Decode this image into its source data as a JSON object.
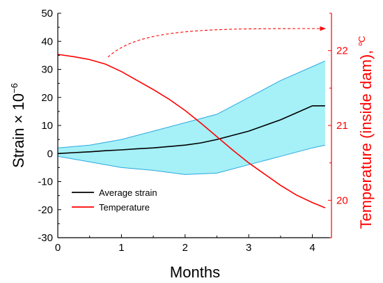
{
  "chart_data": {
    "type": "line",
    "xlabel": "Months",
    "ylabel_left": "Strain × 10",
    "ylabel_left_exponent": "−6",
    "ylabel_right": "Temperature (inside dam), ",
    "ylabel_right_unit": "ºC",
    "xlim": [
      0,
      4.3
    ],
    "ylim_left": [
      -30,
      50
    ],
    "ylim_right": [
      19.5,
      22.5
    ],
    "x_ticks": [
      "0",
      "1",
      "2",
      "3",
      "4"
    ],
    "y_left_ticks": [
      "-30",
      "-20",
      "-10",
      "0",
      "10",
      "20",
      "30",
      "40",
      "50"
    ],
    "y_right_ticks": [
      "20",
      "21",
      "22"
    ],
    "legend": {
      "position": "bottom-left",
      "items": [
        "Average strain",
        "Temperature"
      ]
    },
    "colors": {
      "strain": "#000000",
      "temperature": "#ff0000",
      "band_fill": "#a6f0f7",
      "band_edge": "#29a8e0"
    },
    "annotation": "dashed arrow indicating temperature belongs to right axis",
    "series": [
      {
        "name": "Average strain",
        "axis": "left",
        "x": [
          0,
          0.25,
          0.5,
          0.75,
          1.0,
          1.25,
          1.5,
          1.75,
          2.0,
          2.25,
          2.5,
          2.75,
          3.0,
          3.25,
          3.5,
          3.75,
          4.0,
          4.2
        ],
        "y": [
          0,
          0.3,
          0.6,
          1.0,
          1.3,
          1.7,
          2.0,
          2.5,
          3.0,
          3.8,
          5.0,
          6.5,
          8.0,
          10.0,
          12.0,
          14.5,
          17.0,
          17.0
        ]
      },
      {
        "name": "Strain band upper",
        "axis": "left",
        "x": [
          0,
          0.5,
          1.0,
          1.5,
          2.0,
          2.5,
          3.0,
          3.5,
          4.0,
          4.2
        ],
        "y": [
          2,
          3,
          5,
          8,
          11,
          14,
          20,
          26,
          31,
          33
        ]
      },
      {
        "name": "Strain band lower",
        "axis": "left",
        "x": [
          0,
          0.5,
          1.0,
          1.5,
          2.0,
          2.5,
          3.0,
          3.5,
          4.0,
          4.2
        ],
        "y": [
          -1,
          -3,
          -5,
          -6,
          -7.5,
          -7,
          -4,
          -1,
          2,
          3
        ]
      },
      {
        "name": "Temperature",
        "axis": "right",
        "x": [
          0,
          0.25,
          0.5,
          0.75,
          1.0,
          1.25,
          1.5,
          1.75,
          2.0,
          2.25,
          2.5,
          2.75,
          3.0,
          3.25,
          3.5,
          3.75,
          4.0,
          4.2
        ],
        "y": [
          21.95,
          21.92,
          21.88,
          21.82,
          21.72,
          21.6,
          21.48,
          21.35,
          21.2,
          21.03,
          20.85,
          20.67,
          20.5,
          20.35,
          20.2,
          20.07,
          19.97,
          19.9
        ]
      }
    ]
  }
}
